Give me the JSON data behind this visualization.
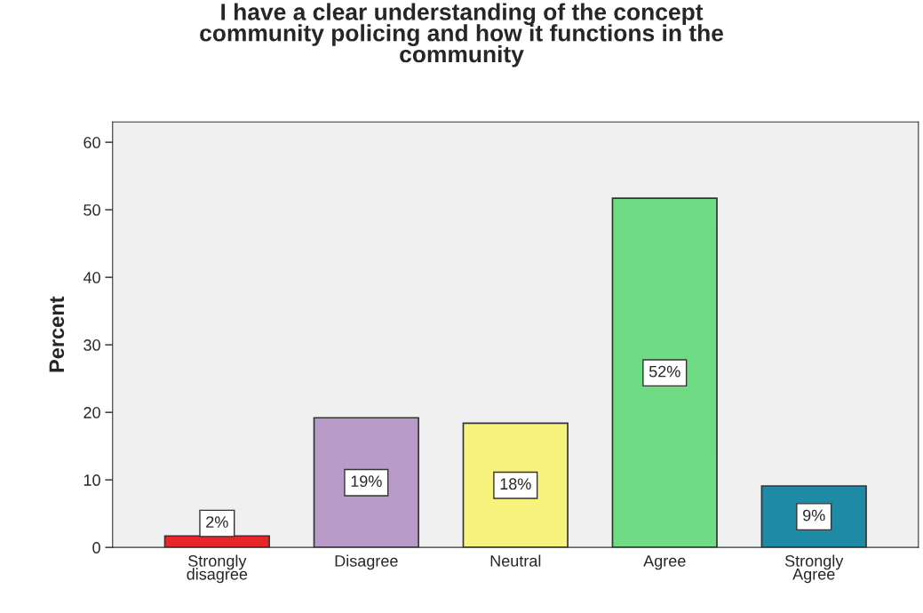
{
  "chart_data": {
    "type": "bar",
    "title": "I have a clear understanding of the concept\ncommunity policing and how it functions in the\ncommunity",
    "ylabel": "Percent",
    "categories": [
      "Strongly\ndisagree",
      "Disagree",
      "Neutral",
      "Agree",
      "Strongly\nAgree"
    ],
    "values": [
      1.7,
      19.2,
      18.4,
      51.7,
      9.1
    ],
    "colors": [
      "#e8262a",
      "#b89bc9",
      "#f8f37c",
      "#6fdc85",
      "#1f8aa5"
    ],
    "value_labels": [
      "2%",
      "19%",
      "18%",
      "52%",
      "9%"
    ],
    "ylim": [
      0,
      63
    ],
    "yticks": [
      0,
      10,
      20,
      30,
      40,
      50,
      60
    ],
    "grid": false,
    "legend": false
  }
}
